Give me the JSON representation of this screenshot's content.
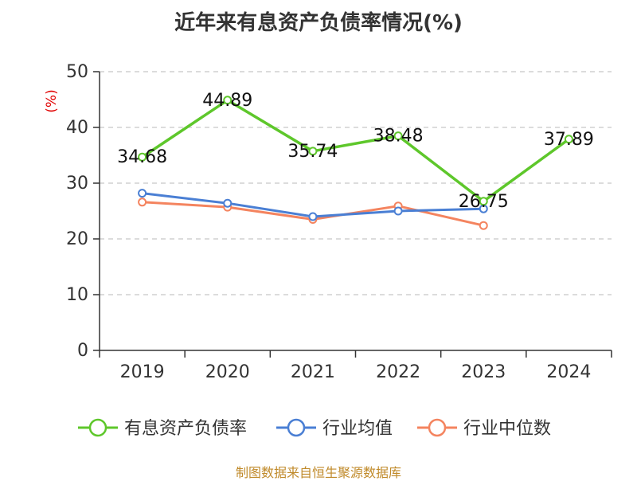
{
  "chart_data": {
    "type": "line",
    "title": "近年来有息资产负债率情况(%)",
    "ylabel": "(%)",
    "categories": [
      "2019",
      "2020",
      "2021",
      "2022",
      "2023",
      "2024"
    ],
    "ylim": [
      0,
      50
    ],
    "yticks": [
      "0",
      "10",
      "20",
      "30",
      "40",
      "50"
    ],
    "grid": true,
    "legend_position": "bottom",
    "series": [
      {
        "name": "有息资产负债率",
        "color": "#5ec72b",
        "values": [
          34.68,
          44.89,
          35.74,
          38.48,
          26.75,
          37.89
        ],
        "labels": [
          "34.68",
          "44.89",
          "35.74",
          "38.48",
          "26.75",
          "37.89"
        ]
      },
      {
        "name": "行业均值",
        "color": "#4a7fd4",
        "values": [
          28.2,
          26.4,
          24.0,
          25.0,
          25.4,
          null
        ]
      },
      {
        "name": "行业中位数",
        "color": "#f4845f",
        "values": [
          26.6,
          25.7,
          23.5,
          25.9,
          22.4,
          null
        ]
      }
    ]
  },
  "source": "制图数据来自恒生聚源数据库"
}
